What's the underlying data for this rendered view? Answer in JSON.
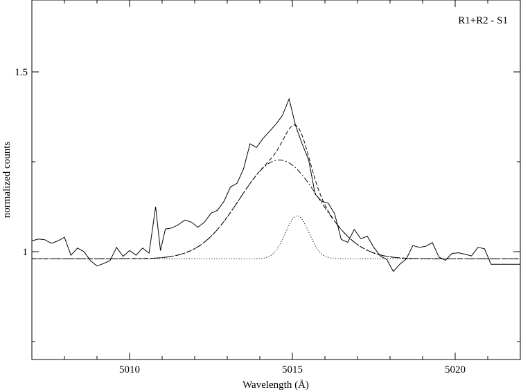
{
  "chart_data": {
    "type": "line",
    "annotation": "R1+R2 - S1",
    "xlabel": "Wavelength  (Å)",
    "ylabel": "normalized counts",
    "xlim": [
      5007,
      5022
    ],
    "ylim": [
      0.7,
      1.7
    ],
    "xticks_major": [
      5010,
      5015,
      5020
    ],
    "xtick_labels": [
      "5010",
      "5015",
      "5020"
    ],
    "xticks_minor": [
      5008,
      5009,
      5011,
      5012,
      5013,
      5014,
      5016,
      5017,
      5018,
      5019,
      5021
    ],
    "yticks_major": [
      1.0,
      1.5
    ],
    "ytick_labels": [
      "1",
      "1.5"
    ],
    "yticks_minor": [
      0.75,
      1.25
    ],
    "grid": false,
    "legend": "none",
    "series": [
      {
        "style": "solid",
        "x": [
          5007.0,
          5007.2,
          5007.4,
          5007.6,
          5007.8,
          5008.0,
          5008.2,
          5008.4,
          5008.6,
          5008.8,
          5009.0,
          5009.2,
          5009.4,
          5009.6,
          5009.8,
          5010.0,
          5010.2,
          5010.4,
          5010.6,
          5010.8,
          5010.95,
          5011.1,
          5011.3,
          5011.5,
          5011.7,
          5011.9,
          5012.1,
          5012.3,
          5012.5,
          5012.7,
          5012.9,
          5013.1,
          5013.3,
          5013.5,
          5013.7,
          5013.9,
          5014.1,
          5014.3,
          5014.5,
          5014.7,
          5014.9,
          5015.1,
          5015.3,
          5015.5,
          5015.7,
          5015.9,
          5016.1,
          5016.3,
          5016.5,
          5016.7,
          5016.9,
          5017.1,
          5017.3,
          5017.5,
          5017.7,
          5017.9,
          5018.1,
          5018.3,
          5018.5,
          5018.7,
          5018.9,
          5019.1,
          5019.3,
          5019.5,
          5019.7,
          5019.9,
          5020.1,
          5020.3,
          5020.5,
          5020.7,
          5020.9,
          5021.1,
          5021.3,
          5021.5,
          5021.7,
          5021.9,
          5022.0
        ],
        "y": [
          1.03,
          1.035,
          1.033,
          1.023,
          1.03,
          1.04,
          0.99,
          1.01,
          1.0,
          0.975,
          0.96,
          0.967,
          0.975,
          1.012,
          0.987,
          1.003,
          0.99,
          1.01,
          0.996,
          1.125,
          1.003,
          1.063,
          1.066,
          1.075,
          1.088,
          1.082,
          1.068,
          1.082,
          1.107,
          1.115,
          1.14,
          1.18,
          1.19,
          1.23,
          1.3,
          1.29,
          1.315,
          1.335,
          1.355,
          1.38,
          1.425,
          1.35,
          1.3,
          1.255,
          1.16,
          1.14,
          1.135,
          1.105,
          1.034,
          1.026,
          1.062,
          1.036,
          1.043,
          1.012,
          0.988,
          0.978,
          0.945,
          0.965,
          0.98,
          1.017,
          1.012,
          1.015,
          1.025,
          0.985,
          0.976,
          0.995,
          0.997,
          0.993,
          0.988,
          1.012,
          1.008,
          0.965,
          0.965,
          0.965,
          0.965,
          0.965,
          0.965
        ]
      },
      {
        "style": "dashed",
        "model": "gaussian-sum",
        "baseline": 0.98,
        "components": [
          {
            "amplitude": 0.275,
            "center": 5014.6,
            "sigma": 1.22
          },
          {
            "amplitude": 0.12,
            "center": 5015.15,
            "sigma": 0.36
          }
        ]
      },
      {
        "style": "dash-dot",
        "model": "gaussian",
        "baseline": 0.98,
        "components": [
          {
            "amplitude": 0.275,
            "center": 5014.6,
            "sigma": 1.22
          }
        ]
      },
      {
        "style": "dotted",
        "model": "gaussian",
        "baseline": 0.98,
        "components": [
          {
            "amplitude": 0.12,
            "center": 5015.15,
            "sigma": 0.36
          }
        ]
      }
    ]
  }
}
